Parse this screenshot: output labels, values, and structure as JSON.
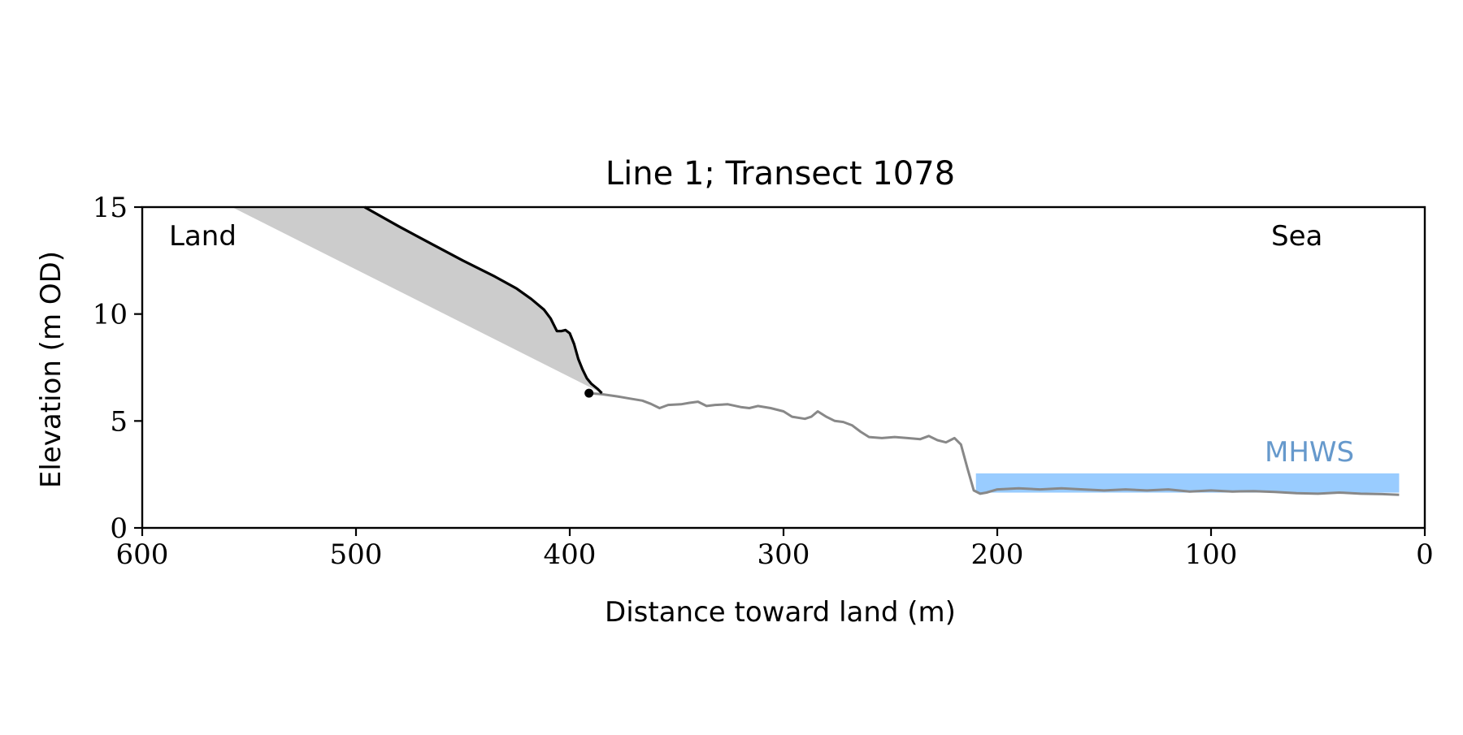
{
  "chart_data": {
    "type": "line",
    "title": "Line 1; Transect 1078",
    "xlabel": "Distance toward land (m)",
    "ylabel": "Elevation (m OD)",
    "xlim": [
      600,
      0
    ],
    "ylim": [
      0,
      15
    ],
    "x_reversed": true,
    "xticks": [
      600,
      500,
      400,
      300,
      200,
      100,
      0
    ],
    "yticks": [
      0,
      5,
      10,
      15
    ],
    "grid": false,
    "annotations": {
      "land_label": "Land",
      "sea_label": "Sea",
      "mhws_label": "MHWS"
    },
    "colors": {
      "profile": "#888888",
      "cliff": "#000000",
      "shade": "#cccccc",
      "mhws_band": "#99ccff",
      "mhws_text": "#6699cc"
    },
    "mhws_band": {
      "x_start": 210,
      "x_end": 12,
      "y_low": 1.65,
      "y_high": 2.55
    },
    "cliff_toe": {
      "x": 391,
      "y": 6.3
    },
    "cliff_profile": [
      [
        496,
        15.0
      ],
      [
        480,
        14.1
      ],
      [
        465,
        13.3
      ],
      [
        450,
        12.5
      ],
      [
        435,
        11.75
      ],
      [
        425,
        11.2
      ],
      [
        418,
        10.7
      ],
      [
        412,
        10.2
      ],
      [
        409,
        9.8
      ],
      [
        406,
        9.2
      ],
      [
        404,
        9.2
      ],
      [
        402,
        9.25
      ],
      [
        400,
        9.1
      ],
      [
        398,
        8.6
      ],
      [
        396,
        7.9
      ],
      [
        394,
        7.4
      ],
      [
        392,
        7.0
      ],
      [
        390,
        6.75
      ],
      [
        387,
        6.5
      ],
      [
        385,
        6.3
      ]
    ],
    "shaded_region": [
      [
        558,
        15.0
      ],
      [
        496,
        15.0
      ],
      [
        480,
        14.1
      ],
      [
        465,
        13.3
      ],
      [
        450,
        12.5
      ],
      [
        435,
        11.75
      ],
      [
        425,
        11.2
      ],
      [
        418,
        10.7
      ],
      [
        412,
        10.2
      ],
      [
        409,
        9.8
      ],
      [
        406,
        9.2
      ],
      [
        404,
        9.2
      ],
      [
        402,
        9.25
      ],
      [
        400,
        9.1
      ],
      [
        398,
        8.6
      ],
      [
        396,
        7.9
      ],
      [
        394,
        7.4
      ],
      [
        392,
        7.0
      ],
      [
        390,
        6.75
      ],
      [
        387,
        6.5
      ],
      [
        385,
        6.3
      ]
    ],
    "ground_profile": [
      [
        391,
        6.3
      ],
      [
        385,
        6.25
      ],
      [
        378,
        6.15
      ],
      [
        372,
        6.05
      ],
      [
        366,
        5.95
      ],
      [
        362,
        5.8
      ],
      [
        358,
        5.6
      ],
      [
        354,
        5.75
      ],
      [
        348,
        5.78
      ],
      [
        344,
        5.85
      ],
      [
        340,
        5.9
      ],
      [
        336,
        5.7
      ],
      [
        332,
        5.75
      ],
      [
        326,
        5.78
      ],
      [
        320,
        5.65
      ],
      [
        316,
        5.6
      ],
      [
        312,
        5.7
      ],
      [
        306,
        5.6
      ],
      [
        300,
        5.45
      ],
      [
        296,
        5.2
      ],
      [
        290,
        5.1
      ],
      [
        287,
        5.2
      ],
      [
        284,
        5.45
      ],
      [
        280,
        5.2
      ],
      [
        276,
        5.0
      ],
      [
        272,
        4.95
      ],
      [
        268,
        4.8
      ],
      [
        264,
        4.5
      ],
      [
        260,
        4.25
      ],
      [
        254,
        4.2
      ],
      [
        248,
        4.25
      ],
      [
        242,
        4.2
      ],
      [
        236,
        4.15
      ],
      [
        232,
        4.3
      ],
      [
        228,
        4.1
      ],
      [
        224,
        4.0
      ],
      [
        220,
        4.2
      ],
      [
        217,
        3.9
      ],
      [
        214,
        2.8
      ],
      [
        211,
        1.75
      ],
      [
        208,
        1.6
      ],
      [
        205,
        1.65
      ],
      [
        200,
        1.8
      ],
      [
        190,
        1.85
      ],
      [
        180,
        1.8
      ],
      [
        170,
        1.85
      ],
      [
        160,
        1.8
      ],
      [
        150,
        1.75
      ],
      [
        140,
        1.8
      ],
      [
        130,
        1.75
      ],
      [
        120,
        1.8
      ],
      [
        110,
        1.7
      ],
      [
        100,
        1.75
      ],
      [
        90,
        1.7
      ],
      [
        80,
        1.72
      ],
      [
        70,
        1.68
      ],
      [
        60,
        1.62
      ],
      [
        50,
        1.6
      ],
      [
        40,
        1.65
      ],
      [
        30,
        1.6
      ],
      [
        20,
        1.58
      ],
      [
        12,
        1.55
      ]
    ]
  }
}
